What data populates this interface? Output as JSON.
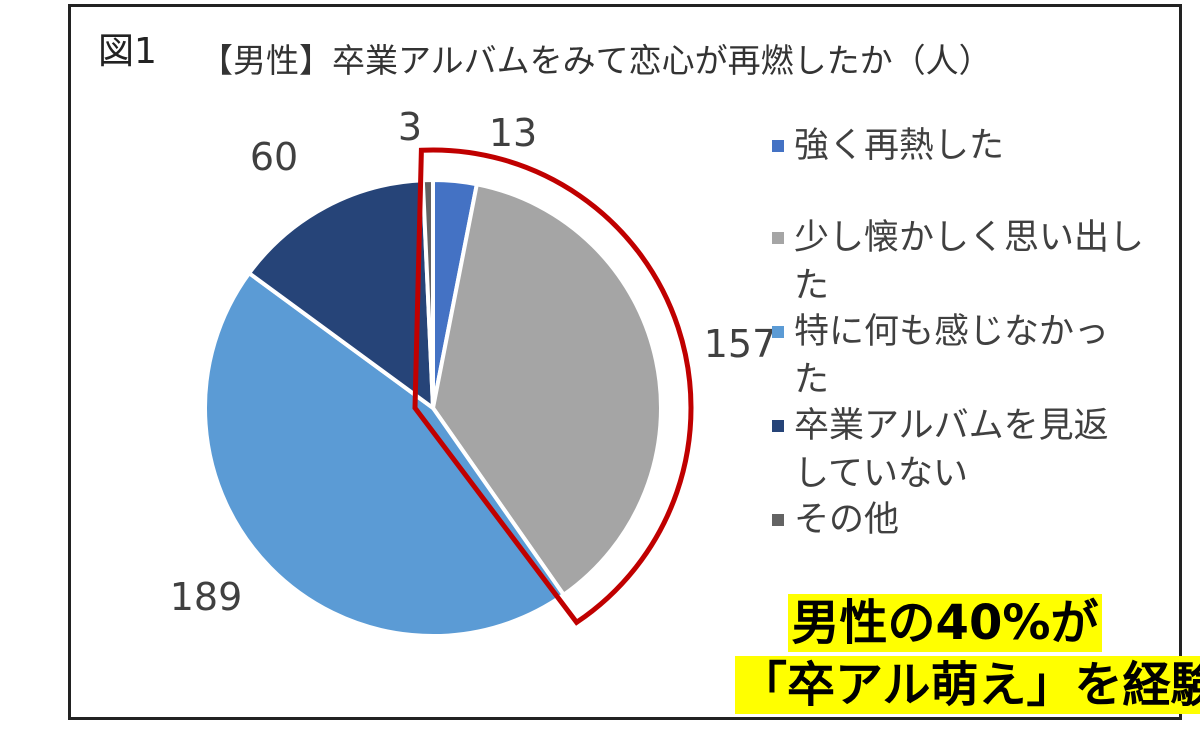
{
  "figure": {
    "label": "図1",
    "callout": [
      "男性の40%が",
      "「卒アル萌え」を経験"
    ]
  },
  "chart_data": {
    "type": "pie",
    "title": "【男性】卒業アルバムをみて恋心が再燃したか（人）",
    "unit": "人",
    "legend_position": "right",
    "slices": [
      {
        "label": "強く再熱した",
        "value": 13,
        "color": "#4472c4",
        "value_label": "13",
        "legend_lines": [
          "強く再熱した"
        ]
      },
      {
        "label": "少し懐かしく思い出した",
        "value": 157,
        "color": "#a5a5a5",
        "value_label": "157",
        "legend_lines": [
          "少し懐かしく思い出し",
          "た"
        ]
      },
      {
        "label": "特に何も感じなかった",
        "value": 189,
        "color": "#5b9bd5",
        "value_label": "189",
        "legend_lines": [
          "特に何も感じなかっ",
          "た"
        ]
      },
      {
        "label": "卒業アルバムを見返していない",
        "value": 60,
        "color": "#264478",
        "value_label": "60",
        "legend_lines": [
          "卒業アルバムを見返",
          "していない"
        ]
      },
      {
        "label": "その他",
        "value": 3,
        "color": "#636363",
        "value_label": "3",
        "legend_lines": [
          "その他"
        ]
      }
    ],
    "highlight": {
      "slices": [
        "強く再熱した",
        "少し懐かしく思い出した"
      ],
      "color": "#c00000"
    }
  }
}
